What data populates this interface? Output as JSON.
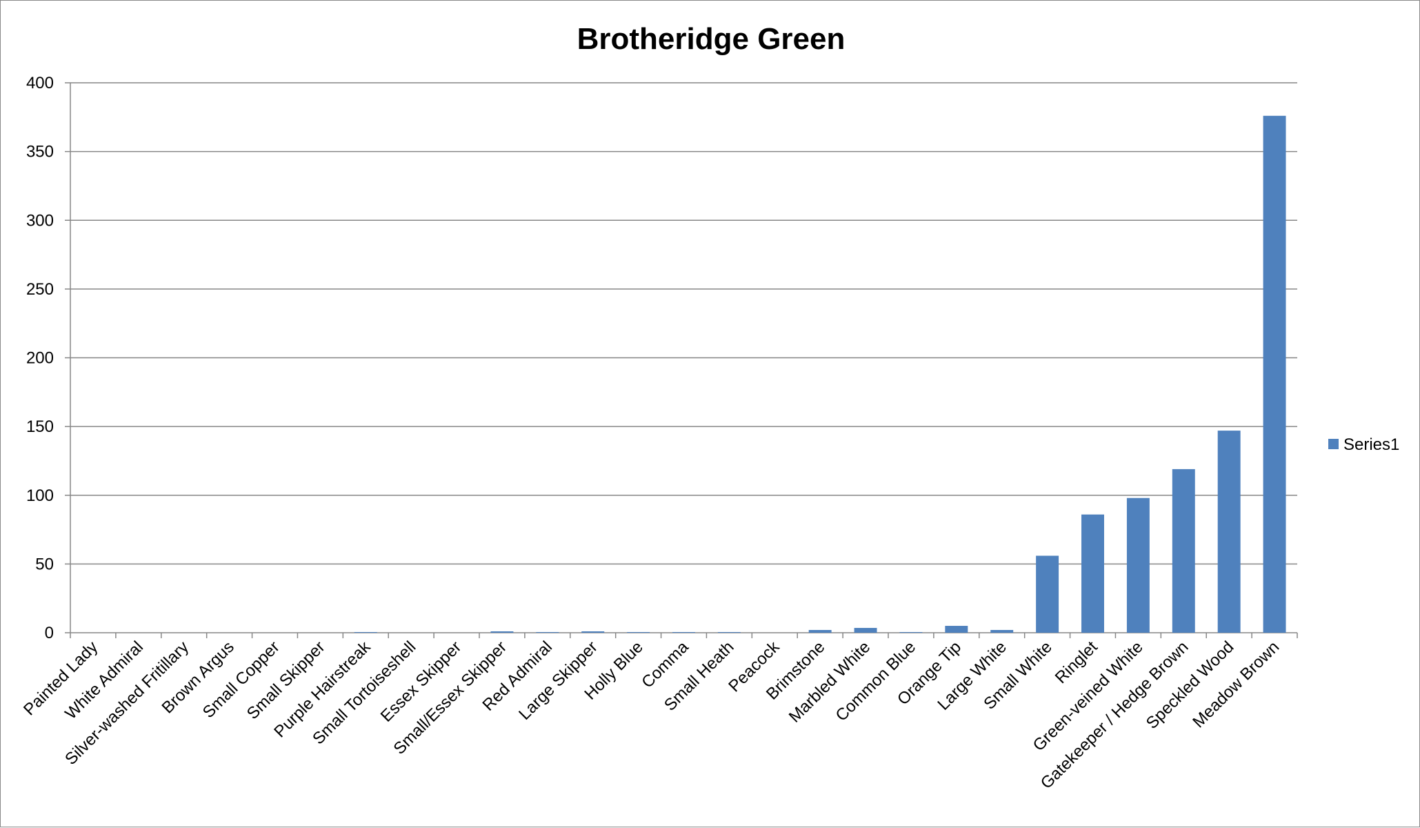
{
  "chart_data": {
    "type": "bar",
    "title": "Brotheridge Green",
    "xlabel": "",
    "ylabel": "",
    "ylim": [
      0,
      400
    ],
    "yticks": [
      0,
      50,
      100,
      150,
      200,
      250,
      300,
      350,
      400
    ],
    "grid": true,
    "legend_position": "right",
    "categories": [
      "Painted Lady",
      "White Admiral",
      "Silver-washed Fritillary",
      "Brown Argus",
      "Small Copper",
      "Small Skipper",
      "Purple Hairstreak",
      "Small Tortoiseshell",
      "Essex Skipper",
      "Small/Essex Skipper",
      "Red Admiral",
      "Large Skipper",
      "Holly Blue",
      "Comma",
      "Small Heath",
      "Peacock",
      "Brimstone",
      "Marbled White",
      "Common Blue",
      "Orange Tip",
      "Large White",
      "Small White",
      "Ringlet",
      "Green-veined White",
      "Gatekeeper / Hedge Brown",
      "Speckled Wood",
      "Meadow Brown"
    ],
    "series": [
      {
        "name": "Series1",
        "color": "#4F81BD",
        "values": [
          0,
          0,
          0,
          0,
          0,
          0,
          0.5,
          0,
          0,
          1,
          0.5,
          1,
          0.5,
          0.5,
          0.5,
          0,
          2,
          3.5,
          0.5,
          5,
          2,
          56,
          86,
          98,
          119,
          147,
          376
        ]
      }
    ]
  },
  "colors": {
    "gridline": "#868686",
    "axis": "#868686",
    "frame": "#888888"
  }
}
